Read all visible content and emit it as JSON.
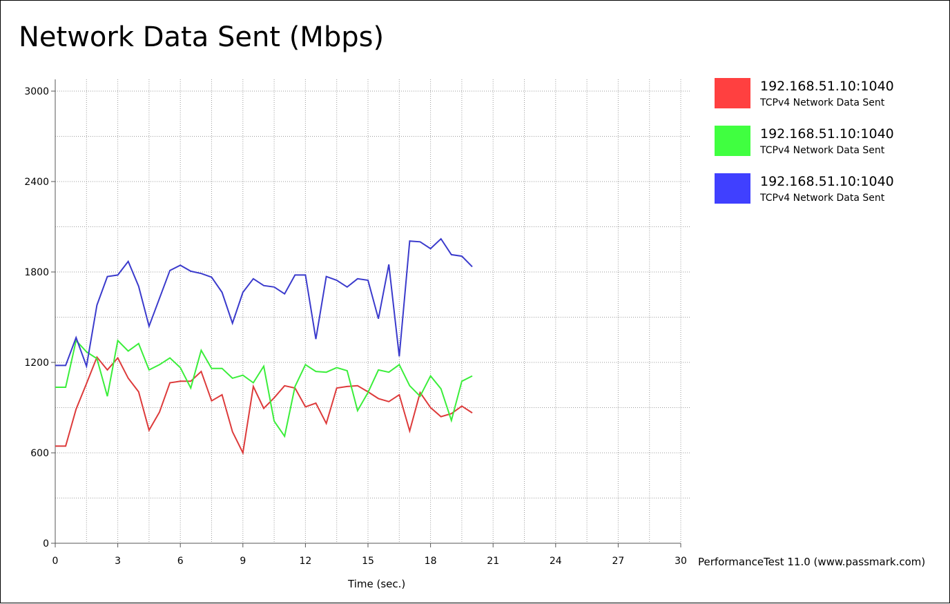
{
  "chart_data": {
    "type": "line",
    "title": "Network Data Sent (Mbps)",
    "xlabel": "Time (sec.)",
    "ylabel": "",
    "xlim": [
      0,
      30
    ],
    "ylim": [
      0,
      3000
    ],
    "xticks": [
      0,
      3,
      6,
      9,
      12,
      15,
      18,
      21,
      24,
      27,
      30
    ],
    "yticks": [
      0,
      600,
      1200,
      1800,
      2400,
      3000
    ],
    "grid": true,
    "legend_position": "right",
    "x": [
      0,
      0.5,
      1,
      1.5,
      2,
      2.5,
      3,
      3.5,
      4,
      4.5,
      5,
      5.5,
      6,
      6.5,
      7,
      7.5,
      8,
      8.5,
      9,
      9.5,
      10,
      10.5,
      11,
      11.5,
      12,
      12.5,
      13,
      13.5,
      14,
      14.5,
      15,
      15.5,
      16,
      16.5,
      17,
      17.5,
      18,
      18.5,
      19,
      19.5,
      20
    ],
    "series": [
      {
        "name": "192.168.51.10:1040",
        "description": "TCPv4 Network Data Sent",
        "color": "#ff4040",
        "values": [
          645,
          645,
          890,
          1060,
          1235,
          1150,
          1230,
          1095,
          1005,
          750,
          870,
          1065,
          1075,
          1075,
          1140,
          945,
          985,
          740,
          600,
          1040,
          895,
          965,
          1045,
          1030,
          905,
          930,
          795,
          1030,
          1040,
          1045,
          1005,
          960,
          940,
          985,
          745,
          1000,
          900,
          840,
          860,
          910,
          865
        ]
      },
      {
        "name": "192.168.51.10:1040",
        "description": "TCPv4 Network Data Sent",
        "color": "#40ff40",
        "values": [
          1035,
          1035,
          1345,
          1270,
          1225,
          975,
          1345,
          1275,
          1325,
          1150,
          1185,
          1230,
          1165,
          1030,
          1280,
          1160,
          1160,
          1095,
          1115,
          1065,
          1175,
          810,
          710,
          1040,
          1185,
          1140,
          1135,
          1165,
          1145,
          880,
          1000,
          1150,
          1135,
          1185,
          1045,
          975,
          1110,
          1025,
          815,
          1075,
          1110
        ]
      },
      {
        "name": "192.168.51.10:1040",
        "description": "TCPv4 Network Data Sent",
        "color": "#4040ff",
        "values": [
          1180,
          1180,
          1365,
          1175,
          1580,
          1770,
          1780,
          1870,
          1705,
          1440,
          1625,
          1810,
          1845,
          1805,
          1790,
          1765,
          1665,
          1460,
          1665,
          1755,
          1710,
          1700,
          1655,
          1780,
          1780,
          1355,
          1770,
          1745,
          1700,
          1755,
          1745,
          1490,
          1850,
          1240,
          2005,
          2000,
          1955,
          2020,
          1915,
          1905,
          1835
        ]
      }
    ]
  },
  "footer": {
    "credit": "PerformanceTest 11.0 (www.passmark.com)"
  }
}
